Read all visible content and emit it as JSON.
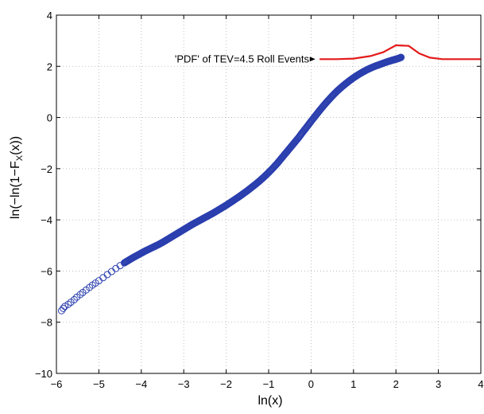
{
  "chart_data": {
    "type": "scatter",
    "xlabel": "ln(x)",
    "ylabel_parts": [
      "ln(−ln(1−F",
      "X",
      "(x))"
    ],
    "xlim": [
      -6,
      4
    ],
    "ylim": [
      -10,
      4
    ],
    "xticks": [
      -6,
      -5,
      -4,
      -3,
      -2,
      -1,
      0,
      1,
      2,
      3,
      4
    ],
    "yticks": [
      -10,
      -8,
      -6,
      -4,
      -2,
      0,
      2,
      4
    ],
    "xtick_labels": [
      "−6",
      "−5",
      "−4",
      "−3",
      "−2",
      "−1",
      "0",
      "1",
      "2",
      "3",
      "4"
    ],
    "ytick_labels": [
      "−10",
      "−8",
      "−6",
      "−4",
      "−2",
      "0",
      "2",
      "4"
    ],
    "grid": true,
    "series": [
      {
        "kind": "scatter",
        "color": "#2b3fae",
        "marker": "circle-open",
        "points": [
          [
            -5.88,
            -7.55
          ],
          [
            -5.84,
            -7.46
          ],
          [
            -5.8,
            -7.38
          ],
          [
            -5.72,
            -7.3
          ],
          [
            -5.66,
            -7.22
          ],
          [
            -5.58,
            -7.12
          ],
          [
            -5.52,
            -7.02
          ],
          [
            -5.44,
            -6.92
          ],
          [
            -5.38,
            -6.84
          ],
          [
            -5.3,
            -6.74
          ],
          [
            -5.22,
            -6.64
          ],
          [
            -5.15,
            -6.55
          ],
          [
            -5.08,
            -6.47
          ],
          [
            -5.0,
            -6.38
          ],
          [
            -4.9,
            -6.26
          ],
          [
            -4.8,
            -6.14
          ],
          [
            -4.7,
            -6.02
          ],
          [
            -4.6,
            -5.9
          ],
          [
            -4.5,
            -5.79
          ],
          [
            -4.4,
            -5.68
          ],
          [
            -4.3,
            -5.58
          ],
          [
            -4.2,
            -5.48
          ],
          [
            -4.1,
            -5.39
          ],
          [
            -4.0,
            -5.3
          ],
          [
            -3.9,
            -5.21
          ],
          [
            -3.8,
            -5.13
          ],
          [
            -3.7,
            -5.05
          ],
          [
            -3.6,
            -4.97
          ],
          [
            -3.5,
            -4.88
          ],
          [
            -3.4,
            -4.78
          ],
          [
            -3.3,
            -4.68
          ],
          [
            -3.2,
            -4.58
          ],
          [
            -3.1,
            -4.48
          ],
          [
            -3.0,
            -4.38
          ],
          [
            -2.9,
            -4.28
          ],
          [
            -2.8,
            -4.18
          ],
          [
            -2.7,
            -4.09
          ],
          [
            -2.6,
            -4.0
          ],
          [
            -2.5,
            -3.91
          ],
          [
            -2.4,
            -3.82
          ],
          [
            -2.3,
            -3.73
          ],
          [
            -2.2,
            -3.63
          ],
          [
            -2.1,
            -3.53
          ],
          [
            -2.0,
            -3.43
          ],
          [
            -1.9,
            -3.32
          ],
          [
            -1.8,
            -3.21
          ],
          [
            -1.7,
            -3.1
          ],
          [
            -1.6,
            -2.98
          ],
          [
            -1.5,
            -2.86
          ],
          [
            -1.4,
            -2.73
          ],
          [
            -1.3,
            -2.6
          ],
          [
            -1.2,
            -2.46
          ],
          [
            -1.1,
            -2.31
          ],
          [
            -1.0,
            -2.15
          ],
          [
            -0.9,
            -1.98
          ],
          [
            -0.8,
            -1.8
          ],
          [
            -0.7,
            -1.6
          ],
          [
            -0.6,
            -1.4
          ],
          [
            -0.5,
            -1.2
          ],
          [
            -0.4,
            -1.0
          ],
          [
            -0.3,
            -0.8
          ],
          [
            -0.2,
            -0.58
          ],
          [
            -0.1,
            -0.37
          ],
          [
            0.0,
            -0.15
          ],
          [
            0.1,
            0.06
          ],
          [
            0.2,
            0.27
          ],
          [
            0.3,
            0.47
          ],
          [
            0.4,
            0.66
          ],
          [
            0.5,
            0.84
          ],
          [
            0.6,
            1.01
          ],
          [
            0.7,
            1.16
          ],
          [
            0.8,
            1.3
          ],
          [
            0.9,
            1.43
          ],
          [
            1.0,
            1.55
          ],
          [
            1.1,
            1.66
          ],
          [
            1.2,
            1.76
          ],
          [
            1.3,
            1.85
          ],
          [
            1.4,
            1.93
          ],
          [
            1.5,
            2.0
          ],
          [
            1.6,
            2.06
          ],
          [
            1.7,
            2.12
          ],
          [
            1.8,
            2.18
          ],
          [
            1.88,
            2.22
          ],
          [
            1.94,
            2.25
          ],
          [
            2.0,
            2.28
          ],
          [
            2.06,
            2.31
          ],
          [
            2.12,
            2.35
          ]
        ]
      },
      {
        "kind": "line",
        "name": "'PDF' of TEV=4.5 Roll Events",
        "color": "#e41b1b",
        "points": [
          [
            0.2,
            2.28
          ],
          [
            0.6,
            2.28
          ],
          [
            1.0,
            2.3
          ],
          [
            1.4,
            2.4
          ],
          [
            1.7,
            2.55
          ],
          [
            2.0,
            2.82
          ],
          [
            2.3,
            2.8
          ],
          [
            2.55,
            2.5
          ],
          [
            2.8,
            2.34
          ],
          [
            3.1,
            2.28
          ],
          [
            4.0,
            2.28
          ]
        ]
      }
    ],
    "annotation": {
      "text": "'PDF' of TEV=4.5 Roll Events",
      "arrow_target": [
        0.1,
        2.28
      ]
    }
  }
}
